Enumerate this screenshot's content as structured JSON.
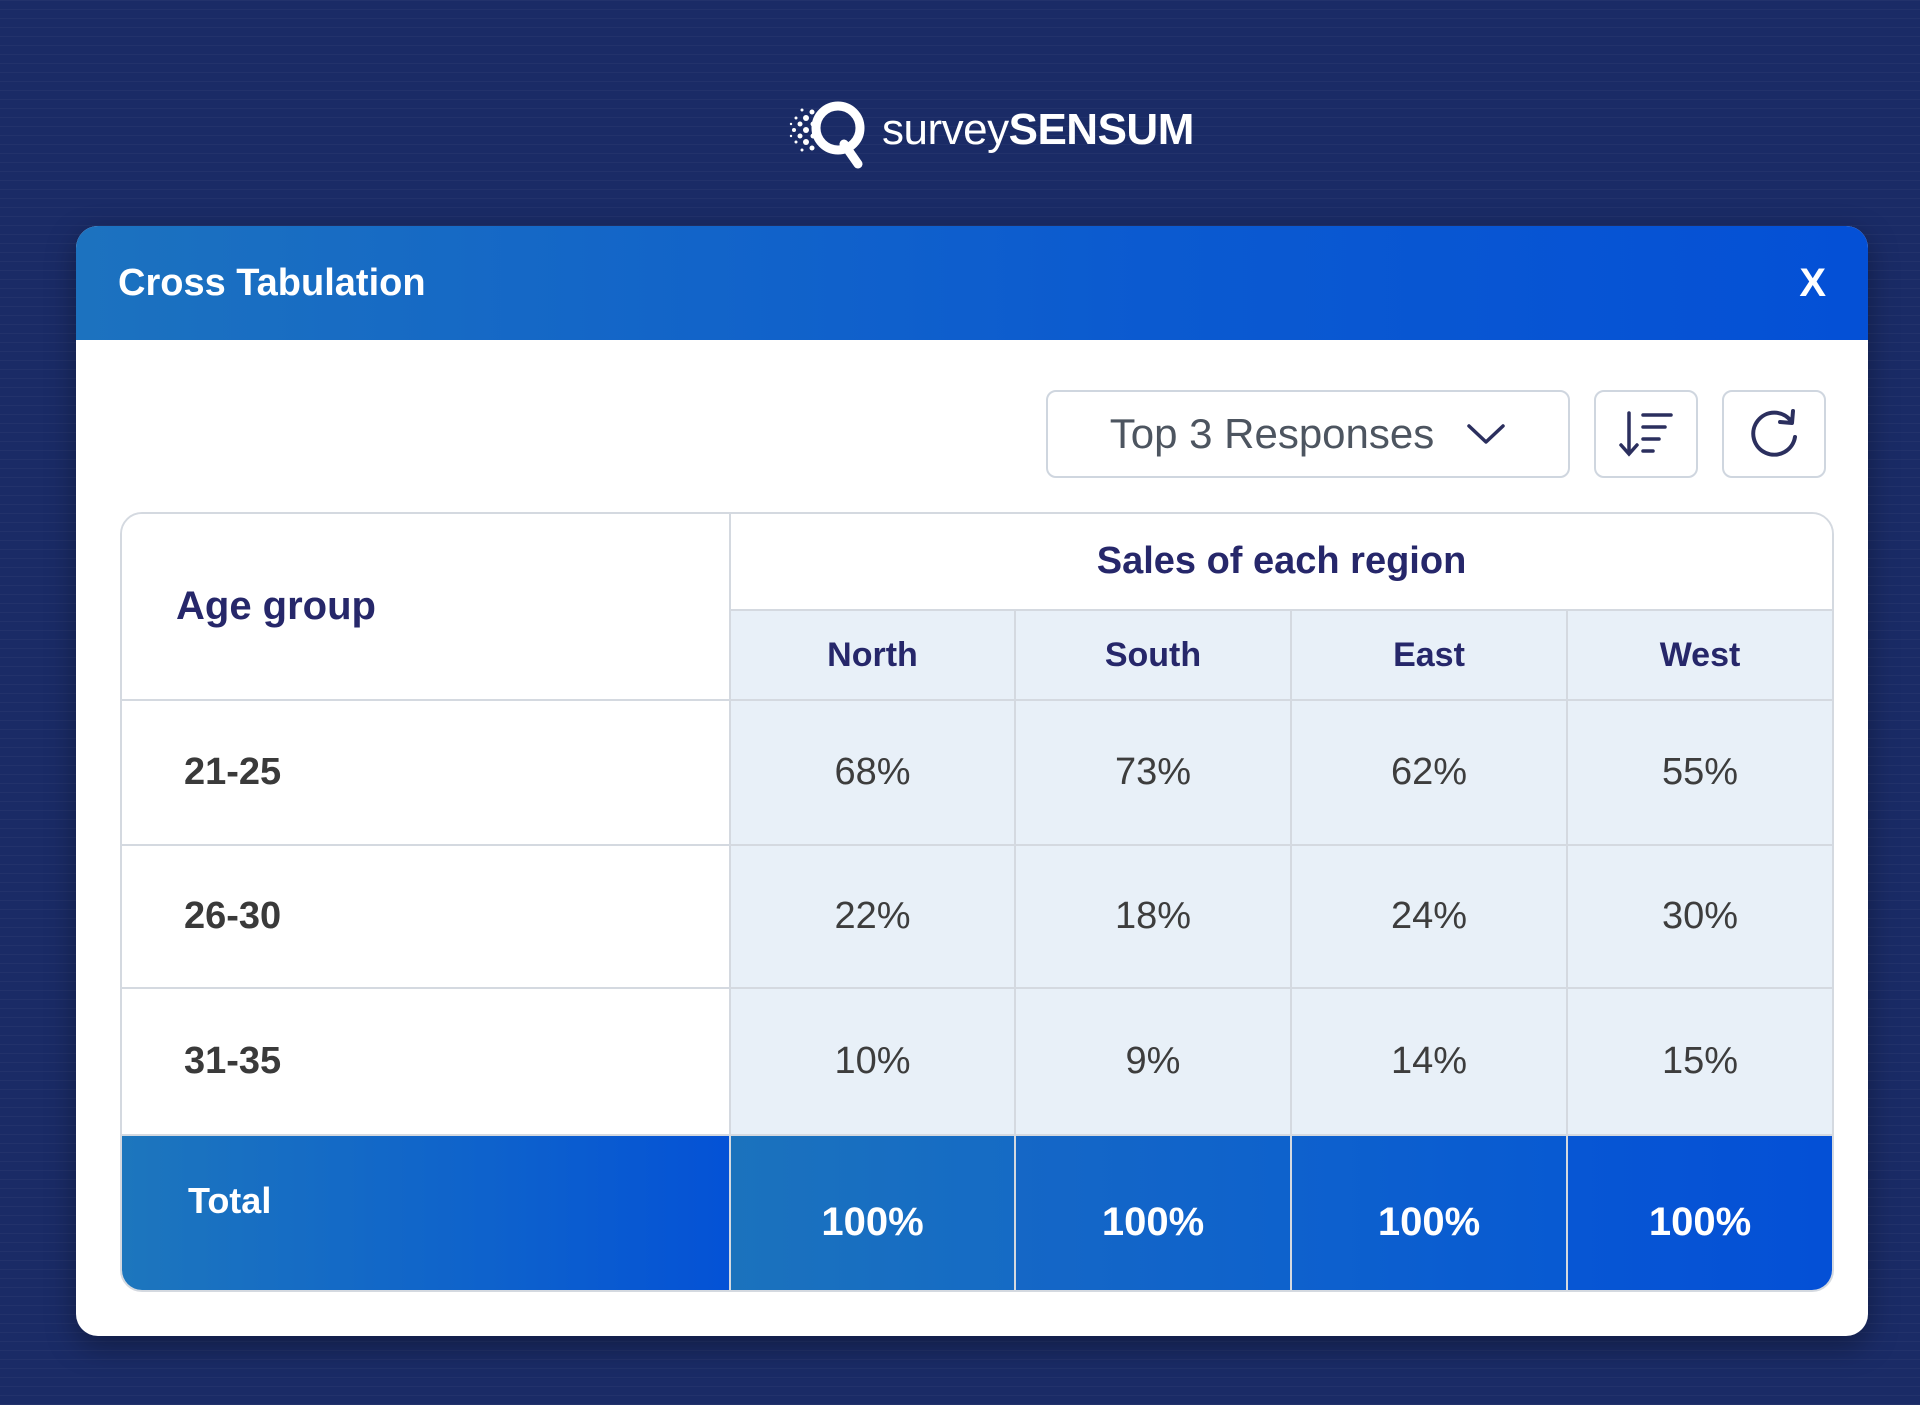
{
  "logo": {
    "text_light": "survey",
    "text_bold": "SENSUM"
  },
  "dialog": {
    "title": "Cross Tabulation",
    "close_label": "X"
  },
  "toolbar": {
    "dropdown_value": "Top 3 Responses",
    "dropdown_icon": "chevron-down-icon",
    "sort_icon": "sort-descending-icon",
    "refresh_icon": "refresh-icon"
  },
  "table": {
    "row_header": "Age group",
    "column_group": "Sales of each region",
    "columns": [
      "North",
      "South",
      "East",
      "West"
    ],
    "rows": [
      {
        "label": "21-25",
        "values": [
          "68%",
          "73%",
          "62%",
          "55%"
        ]
      },
      {
        "label": "26-30",
        "values": [
          "22%",
          "18%",
          "24%",
          "30%"
        ]
      },
      {
        "label": "31-35",
        "values": [
          "10%",
          "9%",
          "14%",
          "15%"
        ]
      }
    ],
    "total": {
      "label": "Total",
      "values": [
        "100%",
        "100%",
        "100%",
        "100%"
      ]
    }
  },
  "colors": {
    "background": "#1a2b66",
    "header_blue": "#0b5ad0",
    "cell_tint": "#e8f0f8",
    "heading_text": "#26276a"
  }
}
